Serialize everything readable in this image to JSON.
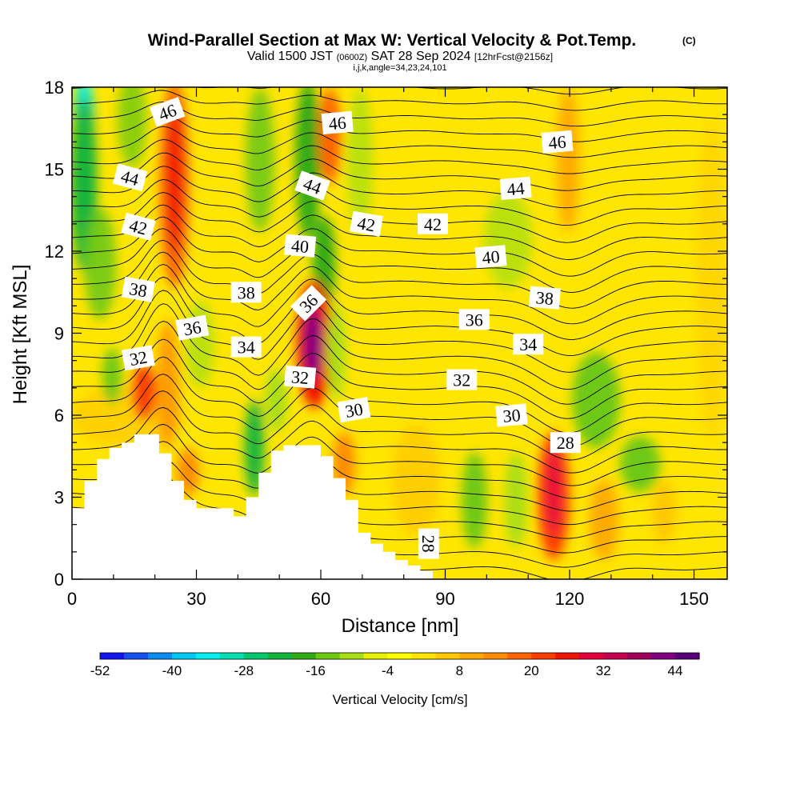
{
  "title": "Wind-Parallel Section at Max W: Vertical Velocity & Pot.Temp.",
  "copyright_mark": "(C)",
  "subtitle_parts": {
    "valid": "Valid 1500 JST",
    "utc": "(0600Z)",
    "date": "SAT 28 Sep 2024",
    "fcst": "[12hrFcst@2156z]"
  },
  "grid_info": "i,j,k,angle=34,23,24,101",
  "chart_data": {
    "type": "heatmap",
    "xlabel": "Distance [nm]",
    "ylabel": "Height [Kft MSL]",
    "xlim": [
      0,
      158
    ],
    "ylim": [
      0,
      18
    ],
    "xticks": [
      0,
      30,
      60,
      90,
      120,
      150
    ],
    "yticks": [
      0,
      3,
      6,
      9,
      12,
      15,
      18
    ],
    "colorbar": {
      "label": "Vertical Velocity [cm/s]",
      "min": -52,
      "max": 48,
      "step": 4,
      "tick_values": [
        -52,
        -40,
        -28,
        -16,
        -4,
        8,
        20,
        32,
        44
      ],
      "colors": [
        "#1414f0",
        "#1450f0",
        "#0a8cf0",
        "#00c8f5",
        "#00f0f0",
        "#00e0b0",
        "#00c86e",
        "#14b43c",
        "#32aa14",
        "#6ec814",
        "#aade14",
        "#e6f000",
        "#ffff00",
        "#ffe600",
        "#ffc800",
        "#ffaa00",
        "#ff8c00",
        "#ff6400",
        "#ff3c00",
        "#f01400",
        "#e6003c",
        "#c80050",
        "#a0005a",
        "#800080",
        "#5a0078"
      ]
    },
    "terrain_profile": {
      "distance_nm": [
        0,
        3,
        3,
        6,
        6,
        9,
        9,
        12,
        12,
        15,
        15,
        21,
        21,
        24,
        24,
        27,
        27,
        30,
        30,
        39,
        39,
        42,
        42,
        45,
        45,
        48,
        48,
        51,
        51,
        54,
        54,
        60,
        60,
        63,
        63,
        66,
        66,
        69,
        69,
        72,
        72,
        75,
        75,
        78,
        78,
        81,
        81,
        84,
        84,
        87,
        87
      ],
      "height_kft": [
        2.6,
        2.6,
        3.6,
        3.6,
        4.4,
        4.4,
        4.8,
        4.8,
        5.0,
        5.0,
        5.3,
        5.3,
        4.6,
        4.6,
        3.6,
        3.6,
        2.9,
        2.9,
        2.6,
        2.6,
        2.3,
        2.3,
        3.0,
        3.0,
        3.9,
        3.9,
        4.7,
        4.7,
        4.9,
        4.9,
        4.9,
        4.9,
        4.5,
        4.5,
        3.7,
        3.7,
        2.9,
        2.9,
        1.7,
        1.7,
        1.3,
        1.3,
        1.0,
        1.0,
        0.7,
        0.7,
        0.5,
        0.5,
        0.3,
        0.3,
        0.3
      ]
    },
    "contour_labels": [
      {
        "text": "46",
        "x": 23,
        "y": 17.1,
        "rot": -20
      },
      {
        "text": "46",
        "x": 64,
        "y": 16.7,
        "rot": -5
      },
      {
        "text": "46",
        "x": 117,
        "y": 16.0,
        "rot": -5
      },
      {
        "text": "44",
        "x": 14,
        "y": 14.7,
        "rot": 15
      },
      {
        "text": "44",
        "x": 58,
        "y": 14.4,
        "rot": 20
      },
      {
        "text": "44",
        "x": 107,
        "y": 14.3,
        "rot": -5
      },
      {
        "text": "42",
        "x": 16,
        "y": 12.9,
        "rot": 15
      },
      {
        "text": "42",
        "x": 71,
        "y": 13.0,
        "rot": 10
      },
      {
        "text": "42",
        "x": 87,
        "y": 13.0,
        "rot": 0
      },
      {
        "text": "40",
        "x": 55,
        "y": 12.2,
        "rot": 5
      },
      {
        "text": "40",
        "x": 101,
        "y": 11.8,
        "rot": -5
      },
      {
        "text": "38",
        "x": 16,
        "y": 10.6,
        "rot": 10
      },
      {
        "text": "38",
        "x": 42,
        "y": 10.5,
        "rot": 0
      },
      {
        "text": "38",
        "x": 114,
        "y": 10.3,
        "rot": 5
      },
      {
        "text": "36",
        "x": 57,
        "y": 10.1,
        "rot": -45
      },
      {
        "text": "36",
        "x": 29,
        "y": 9.2,
        "rot": -10
      },
      {
        "text": "36",
        "x": 97,
        "y": 9.5,
        "rot": 0
      },
      {
        "text": "34",
        "x": 42,
        "y": 8.5,
        "rot": 0
      },
      {
        "text": "34",
        "x": 110,
        "y": 8.6,
        "rot": 0
      },
      {
        "text": "32",
        "x": 16,
        "y": 8.1,
        "rot": -10
      },
      {
        "text": "32",
        "x": 55,
        "y": 7.4,
        "rot": 5
      },
      {
        "text": "32",
        "x": 94,
        "y": 7.3,
        "rot": 0
      },
      {
        "text": "30",
        "x": 68,
        "y": 6.2,
        "rot": -10
      },
      {
        "text": "30",
        "x": 106,
        "y": 6.0,
        "rot": -5
      },
      {
        "text": "28",
        "x": 119,
        "y": 5.0,
        "rot": 0
      },
      {
        "text": "28",
        "x": 86,
        "y": 1.3,
        "rot": 90
      }
    ]
  }
}
